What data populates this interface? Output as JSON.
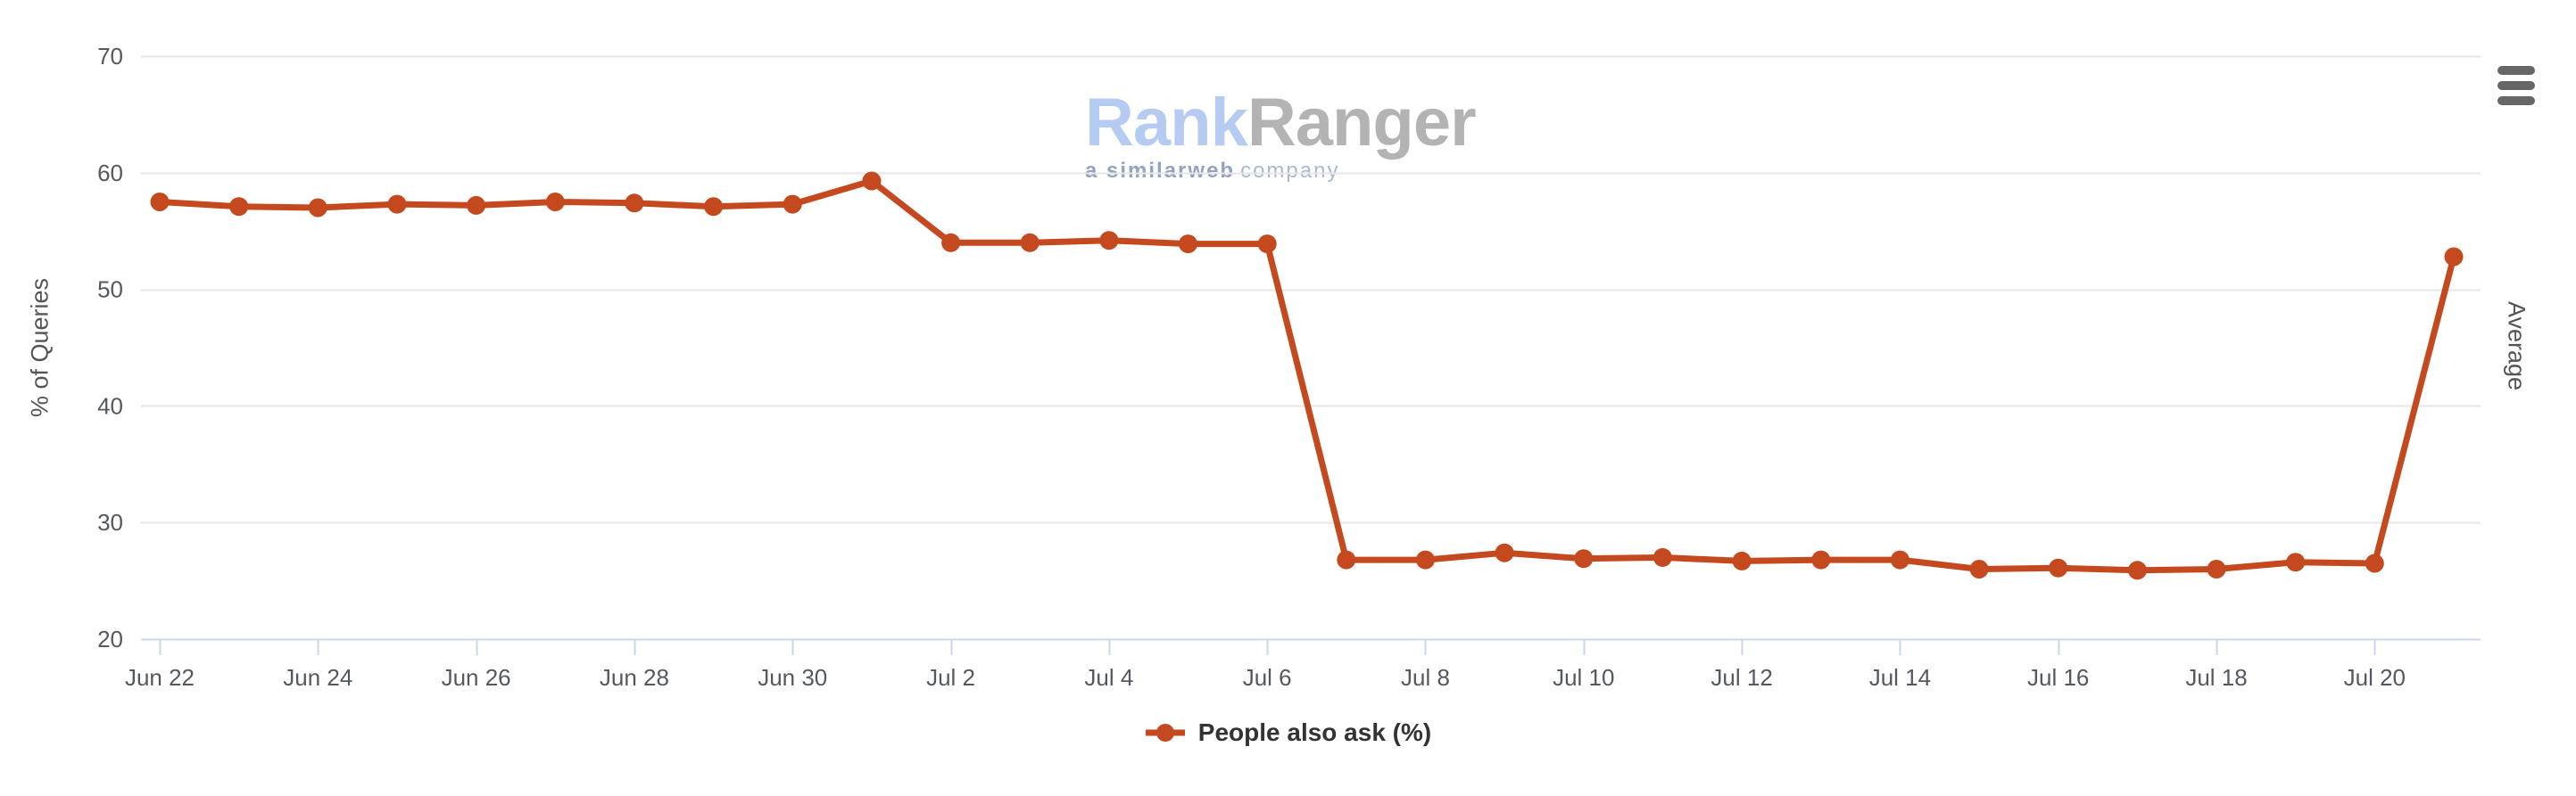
{
  "chart_data": {
    "type": "line",
    "title": "",
    "categories": [
      "Jun 22",
      "Jun 23",
      "Jun 24",
      "Jun 25",
      "Jun 26",
      "Jun 27",
      "Jun 28",
      "Jun 29",
      "Jun 30",
      "Jul 1",
      "Jul 2",
      "Jul 3",
      "Jul 4",
      "Jul 5",
      "Jul 6",
      "Jul 7",
      "Jul 8",
      "Jul 9",
      "Jul 10",
      "Jul 11",
      "Jul 12",
      "Jul 13",
      "Jul 14",
      "Jul 15",
      "Jul 16",
      "Jul 17",
      "Jul 18",
      "Jul 19",
      "Jul 20",
      "Jul 21"
    ],
    "series": [
      {
        "name": "People also ask (%)",
        "color": "#c5491f",
        "values": [
          57.5,
          57.1,
          57.0,
          57.3,
          57.2,
          57.5,
          57.4,
          57.1,
          57.3,
          59.3,
          54.0,
          54.0,
          54.2,
          53.9,
          53.9,
          26.8,
          26.8,
          27.4,
          26.9,
          27.0,
          26.7,
          26.8,
          26.8,
          26.0,
          26.1,
          25.9,
          26.0,
          26.6,
          26.5,
          52.8
        ]
      }
    ],
    "x_tick_label_every": 2,
    "x_tick_labels": [
      "Jun 22",
      "Jun 24",
      "Jun 26",
      "Jun 28",
      "Jun 30",
      "Jul 2",
      "Jul 4",
      "Jul 6",
      "Jul 8",
      "Jul 10",
      "Jul 12",
      "Jul 14",
      "Jul 16",
      "Jul 18",
      "Jul 20"
    ],
    "ylabel": "% of Queries",
    "ylabel_right": "Average",
    "ylim": [
      20,
      70
    ],
    "y_ticks": [
      20,
      30,
      40,
      50,
      60,
      70
    ],
    "grid": true,
    "legend_position": "bottom-center"
  },
  "legend": {
    "items": [
      {
        "label": "People also ask (%)",
        "color": "#c5491f"
      }
    ]
  },
  "watermark": {
    "brand_part1": "Rank",
    "brand_part2": "Ranger",
    "tagline_bold": "a similarweb",
    "tagline_light": "company"
  },
  "colors": {
    "series": "#c5491f",
    "grid": "#e6e6e6",
    "axis_line": "#ccd6eb",
    "tick_label": "#55595e",
    "axis_title": "#555555",
    "legend_text": "#333333",
    "watermark_blue": "#b5cbf2",
    "watermark_gray": "#b3b3b3",
    "watermark_tag_bold": "#93a2c2",
    "watermark_tag_light": "#aab7d4",
    "menu_icon": "#666666",
    "background": "#ffffff"
  }
}
